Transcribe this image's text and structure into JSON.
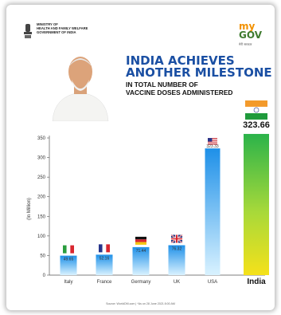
{
  "header": {
    "ministry_lines": [
      "MINISTRY OF",
      "HEALTH AND FAMILY WELFARE",
      "GOVERNMENT OF INDIA"
    ],
    "logo_my": "my",
    "logo_gov": "GOV",
    "logo_hindi": "मेरी सरकार"
  },
  "headline": {
    "line1": "INDIA ACHIEVES",
    "line2": "ANOTHER MILESTONE",
    "sub1": "IN TOTAL NUMBER OF",
    "sub2": "VACCINE DOSES ADMINISTERED"
  },
  "footer": "Source: WorldOM.com  |  *As on 28 June 2021 8:00 AM",
  "colors": {
    "bar_top": "#1e90e8",
    "bar_bottom": "#d9f2ff",
    "india_green": "#2bb34a",
    "india_yellow": "#f5e11a",
    "axis": "#555555",
    "headline": "#1a4fa3"
  },
  "chart_data": {
    "type": "bar",
    "categories": [
      "Italy",
      "France",
      "Germany",
      "UK",
      "USA",
      "India"
    ],
    "values": [
      49.65,
      52.16,
      71.44,
      76.32,
      323.33,
      323.66
    ],
    "value_labels": [
      "49.65",
      "52.16",
      "71.44",
      "76.32",
      "323.33",
      "323.66"
    ],
    "flags": [
      "italy-flag-icon",
      "france-flag-icon",
      "germany-flag-icon",
      "uk-flag-icon",
      "usa-flag-icon",
      "india-flag-icon"
    ],
    "ylabel": "(In Million)",
    "ylim": [
      0,
      350
    ],
    "yticks": [
      "0",
      "50",
      "100",
      "150",
      "200",
      "250",
      "300",
      "350"
    ],
    "grid": false
  }
}
